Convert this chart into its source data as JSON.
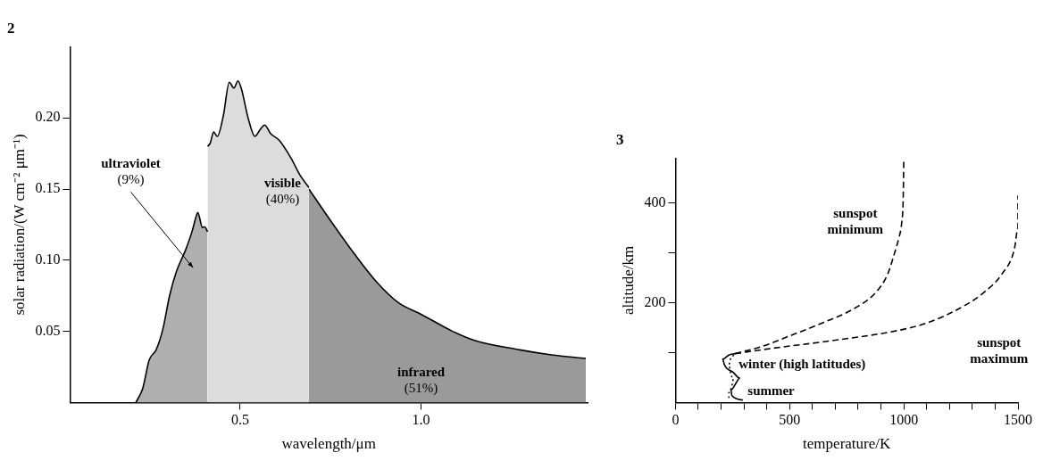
{
  "chart_data": [
    {
      "type": "area",
      "title": "2",
      "xlabel": "wavelength/μm",
      "ylabel": "solar radiation/(W cm⁻² μm⁻¹)",
      "xlim": [
        0.03,
        1.46
      ],
      "xticks": [
        0.5,
        {
          "value": 1,
          "label": "1.0"
        }
      ],
      "ylim": [
        0,
        0.25
      ],
      "yticks": [
        0.05,
        {
          "value": 0.1,
          "label": "0.10"
        },
        0.15,
        {
          "value": 0.2,
          "label": "0.20"
        }
      ],
      "grid": false,
      "legend": false,
      "series": [
        {
          "name": "ultraviolet (9%)",
          "color": "#b0b0b0",
          "x": [
            0.212,
            0.231,
            0.249,
            0.268,
            0.287,
            0.305,
            0.324,
            0.349,
            0.367,
            0.38,
            0.383,
            0.396,
            0.402,
            0.41
          ],
          "values": [
            0,
            0.01,
            0.03,
            0.037,
            0.052,
            0.075,
            0.092,
            0.107,
            0.12,
            0.132,
            0.1335,
            0.123,
            0.1235,
            0.12
          ]
        },
        {
          "name": "visible (40%)",
          "color": "#dcdcdc",
          "x": [
            0.41,
            0.417,
            0.427,
            0.437,
            0.454,
            0.47,
            0.483,
            0.494,
            0.504,
            0.522,
            0.541,
            0.556,
            0.568,
            0.584,
            0.609,
            0.64,
            0.665,
            0.69
          ],
          "values": [
            0.18,
            0.182,
            0.19,
            0.187,
            0.202,
            0.225,
            0.221,
            0.226,
            0.22,
            0.2,
            0.187,
            0.192,
            0.195,
            0.189,
            0.184,
            0.172,
            0.16,
            0.151
          ]
        },
        {
          "name": "infrared (51%)",
          "color": "#9a9a9a",
          "x": [
            0.69,
            0.752,
            0.814,
            0.876,
            0.938,
            1.0,
            1.087,
            1.149,
            1.273,
            1.36,
            1.455
          ],
          "values": [
            0.15,
            0.127,
            0.105,
            0.085,
            0.07,
            0.062,
            0.05,
            0.0435,
            0.037,
            0.0335,
            0.031
          ]
        }
      ]
    },
    {
      "type": "line",
      "title": "3",
      "xlabel": "temperature/K",
      "ylabel": "altitude/km",
      "xlim": [
        0,
        1500
      ],
      "xticks": [
        0,
        {
          "value": 100,
          "label": null
        },
        {
          "value": 200,
          "label": null
        },
        {
          "value": 300,
          "label": null
        },
        {
          "value": 400,
          "label": null
        },
        500,
        {
          "value": 600,
          "label": null
        },
        {
          "value": 700,
          "label": null
        },
        {
          "value": 800,
          "label": null
        },
        {
          "value": 900,
          "label": null
        },
        1000,
        {
          "value": 1100,
          "label": null
        },
        {
          "value": 1200,
          "label": null
        },
        {
          "value": 1300,
          "label": null
        },
        {
          "value": 1400,
          "label": null
        },
        1500
      ],
      "ylim": [
        0,
        490
      ],
      "yticks": [
        {
          "value": 100,
          "label": null
        },
        200,
        {
          "value": 300,
          "label": null
        },
        400
      ],
      "grid": false,
      "legend": false,
      "marker": "none",
      "series": [
        {
          "name": "sunspot minimum",
          "color": "#000000",
          "line_style": "dashed",
          "x": [
            261,
            376,
            497,
            646,
            781,
            876,
            930,
            957,
            977,
            991,
            997,
            1000
          ],
          "values": [
            98,
            112,
            133,
            160,
            188,
            220,
            258,
            296,
            328,
            361,
            404,
            486
          ]
        },
        {
          "name": "sunspot maximum",
          "color": "#000000",
          "line_style": "dashed",
          "x": [
            261,
            430,
            700,
            970,
            1105,
            1241,
            1349,
            1430,
            1484,
            1500,
            1500
          ],
          "values": [
            98,
            109,
            125,
            144,
            160,
            188,
            220,
            258,
            307,
            350,
            415
          ]
        },
        {
          "name": "winter (high latitudes)",
          "color": "#000000",
          "line_style": "dotted",
          "x": [
            234,
            234,
            247,
            254,
            241,
            234,
            241,
            261
          ],
          "values": [
            9,
            20,
            33,
            47,
            60,
            76,
            87,
            97
          ]
        },
        {
          "name": "summer",
          "color": "#000000",
          "line_style": "solid",
          "x": [
            295,
            247,
            243,
            268,
            281,
            254,
            214,
            207,
            234,
            261
          ],
          "values": [
            5,
            14,
            25,
            41,
            49,
            60,
            76,
            87,
            95,
            98
          ]
        }
      ]
    }
  ]
}
